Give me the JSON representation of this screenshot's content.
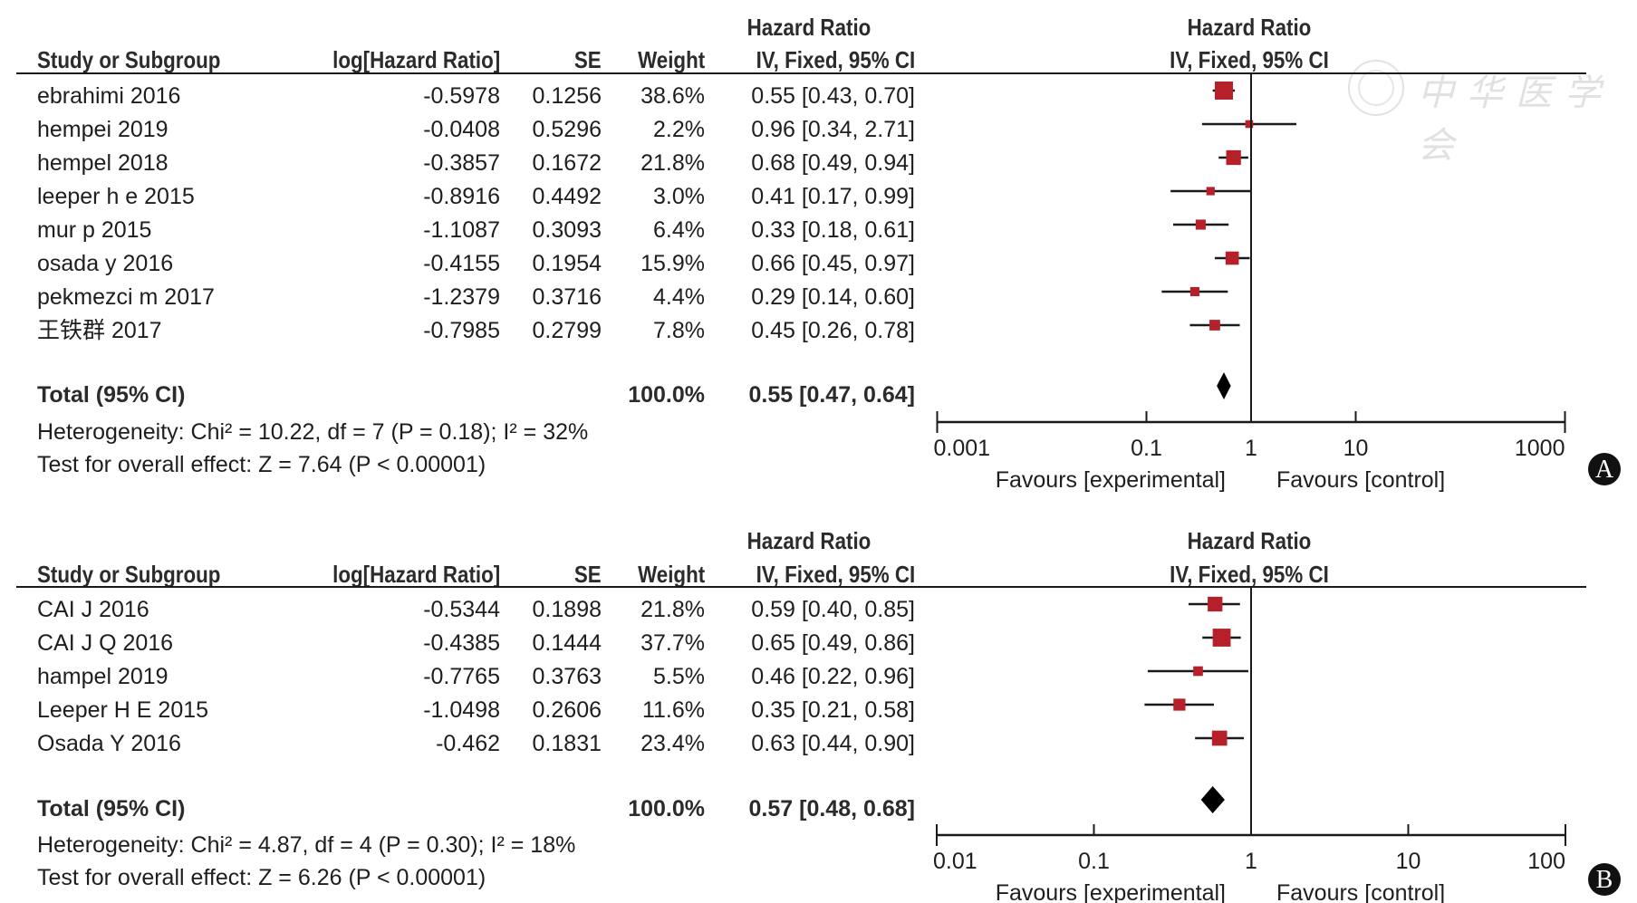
{
  "colors": {
    "marker": "#b5202a",
    "line": "#1a1a1a",
    "diamond": "#000000",
    "watermark": "#d8d8d8"
  },
  "watermark": {
    "text": "中华医学会",
    "logo": "chinese-medical-association-seal"
  },
  "chart_data": [
    {
      "type": "forest",
      "panel_label": "A",
      "columns": {
        "study": "Study or Subgroup",
        "loghr": "log[Hazard Ratio]",
        "se": "SE",
        "weight": "Weight",
        "ci_top": "Hazard Ratio",
        "ci": "IV, Fixed, 95% CI",
        "plot_top": "Hazard Ratio",
        "plot": "IV, Fixed, 95% CI"
      },
      "studies": [
        {
          "name": "ebrahimi  2016",
          "loghr": "-0.5978",
          "se": "0.1256",
          "weight": "38.6%",
          "w": 38.6,
          "hr": 0.55,
          "lo": 0.43,
          "hi": 0.7,
          "ci_text": "0.55 [0.43, 0.70]"
        },
        {
          "name": "hempei 2019",
          "loghr": "-0.0408",
          "se": "0.5296",
          "weight": "2.2%",
          "w": 2.2,
          "hr": 0.96,
          "lo": 0.34,
          "hi": 2.71,
          "ci_text": "0.96 [0.34, 2.71]"
        },
        {
          "name": "hempel 2018",
          "loghr": "-0.3857",
          "se": "0.1672",
          "weight": "21.8%",
          "w": 21.8,
          "hr": 0.68,
          "lo": 0.49,
          "hi": 0.94,
          "ci_text": "0.68 [0.49, 0.94]"
        },
        {
          "name": "leeper h e 2015",
          "loghr": "-0.8916",
          "se": "0.4492",
          "weight": "3.0%",
          "w": 3.0,
          "hr": 0.41,
          "lo": 0.17,
          "hi": 0.99,
          "ci_text": "0.41 [0.17, 0.99]"
        },
        {
          "name": "mur p 2015",
          "loghr": "-1.1087",
          "se": "0.3093",
          "weight": "6.4%",
          "w": 6.4,
          "hr": 0.33,
          "lo": 0.18,
          "hi": 0.61,
          "ci_text": "0.33 [0.18, 0.61]"
        },
        {
          "name": "osada y 2016",
          "loghr": "-0.4155",
          "se": "0.1954",
          "weight": "15.9%",
          "w": 15.9,
          "hr": 0.66,
          "lo": 0.45,
          "hi": 0.97,
          "ci_text": "0.66 [0.45, 0.97]"
        },
        {
          "name": "pekmezci m 2017",
          "loghr": "-1.2379",
          "se": "0.3716",
          "weight": "4.4%",
          "w": 4.4,
          "hr": 0.29,
          "lo": 0.14,
          "hi": 0.6,
          "ci_text": "0.29 [0.14, 0.60]"
        },
        {
          "name": "王铁群 2017",
          "loghr": "-0.7985",
          "se": "0.2799",
          "weight": "7.8%",
          "w": 7.8,
          "hr": 0.45,
          "lo": 0.26,
          "hi": 0.78,
          "ci_text": "0.45 [0.26, 0.78]"
        }
      ],
      "total": {
        "label": "Total (95% CI)",
        "weight": "100.0%",
        "hr": 0.55,
        "lo": 0.47,
        "hi": 0.64,
        "ci_text": "0.55 [0.47, 0.64]"
      },
      "heterogeneity": "Heterogeneity: Chi² = 10.22, df = 7 (P = 0.18); I² = 32%",
      "overall_effect": "Test for overall effect: Z = 7.64 (P < 0.00001)",
      "axis": {
        "scale": "log",
        "ticks": [
          0.001,
          0.1,
          1,
          10,
          1000
        ],
        "tick_labels": [
          "0.001",
          "0.1",
          "1",
          "10",
          "1000"
        ],
        "xlim": [
          0.001,
          1000
        ]
      },
      "favours_left": "Favours [experimental]",
      "favours_right": "Favours [control]"
    },
    {
      "type": "forest",
      "panel_label": "B",
      "columns": {
        "study": "Study or Subgroup",
        "loghr": "log[Hazard Ratio]",
        "se": "SE",
        "weight": "Weight",
        "ci_top": "Hazard Ratio",
        "ci": "IV, Fixed, 95% CI",
        "plot_top": "Hazard Ratio",
        "plot": "IV, Fixed, 95% CI"
      },
      "studies": [
        {
          "name": "CAI J  2016",
          "loghr": "-0.5344",
          "se": "0.1898",
          "weight": "21.8%",
          "w": 21.8,
          "hr": 0.59,
          "lo": 0.4,
          "hi": 0.85,
          "ci_text": "0.59 [0.40, 0.85]"
        },
        {
          "name": "CAI J Q 2016",
          "loghr": "-0.4385",
          "se": "0.1444",
          "weight": "37.7%",
          "w": 37.7,
          "hr": 0.65,
          "lo": 0.49,
          "hi": 0.86,
          "ci_text": "0.65 [0.49, 0.86]"
        },
        {
          "name": "hampel 2019",
          "loghr": "-0.7765",
          "se": "0.3763",
          "weight": "5.5%",
          "w": 5.5,
          "hr": 0.46,
          "lo": 0.22,
          "hi": 0.96,
          "ci_text": "0.46 [0.22, 0.96]"
        },
        {
          "name": "Leeper H E 2015",
          "loghr": "-1.0498",
          "se": "0.2606",
          "weight": "11.6%",
          "w": 11.6,
          "hr": 0.35,
          "lo": 0.21,
          "hi": 0.58,
          "ci_text": "0.35 [0.21, 0.58]"
        },
        {
          "name": "Osada Y 2016",
          "loghr": "-0.462",
          "se": "0.1831",
          "weight": "23.4%",
          "w": 23.4,
          "hr": 0.63,
          "lo": 0.44,
          "hi": 0.9,
          "ci_text": "0.63 [0.44, 0.90]"
        }
      ],
      "total": {
        "label": "Total (95% CI)",
        "weight": "100.0%",
        "hr": 0.57,
        "lo": 0.48,
        "hi": 0.68,
        "ci_text": "0.57 [0.48, 0.68]"
      },
      "heterogeneity": "Heterogeneity: Chi² = 4.87, df = 4 (P = 0.30); I² = 18%",
      "overall_effect": "Test for overall effect: Z = 6.26 (P < 0.00001)",
      "axis": {
        "scale": "log",
        "ticks": [
          0.01,
          0.1,
          1,
          10,
          100
        ],
        "tick_labels": [
          "0.01",
          "0.1",
          "1",
          "10",
          "100"
        ],
        "xlim": [
          0.01,
          100
        ]
      },
      "favours_left": "Favours [experimental]",
      "favours_right": "Favours [control]"
    }
  ]
}
